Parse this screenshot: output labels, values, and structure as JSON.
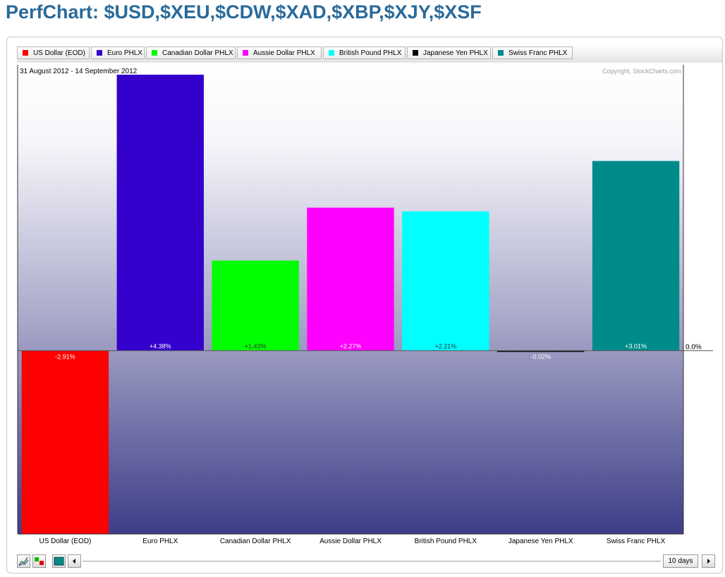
{
  "title": "PerfChart: $USD,$XEU,$CDW,$XAD,$XBP,$XJY,$XSF",
  "chart_data": {
    "type": "bar",
    "date_range": "31 August 2012 - 14 September 2012",
    "copyright": "Copyright, StockCharts.com",
    "zero_label": "0.0%",
    "categories": [
      "US Dollar (EOD)",
      "Euro PHLX",
      "Canadian Dollar PHLX",
      "Aussie Dollar PHLX",
      "British Pound PHLX",
      "Japanese Yen PHLX",
      "Swiss Franc PHLX"
    ],
    "values": [
      -2.91,
      4.38,
      1.43,
      2.27,
      2.21,
      -0.02,
      3.01
    ],
    "value_labels": [
      "-2.91%",
      "+4.38%",
      "+1.43%",
      "+2.27%",
      "+2.21%",
      "-0.02%",
      "+3.01%"
    ],
    "colors": [
      "#ff0000",
      "#3300cc",
      "#00ff00",
      "#ff00ff",
      "#00ffff",
      "#000000",
      "#008b8b"
    ],
    "ylim": [
      -2.91,
      4.38
    ],
    "grid": false,
    "legend_position": "top"
  },
  "legend": {
    "items": [
      {
        "label": "US Dollar (EOD)",
        "color": "#ff0000"
      },
      {
        "label": "Euro PHLX",
        "color": "#3300cc"
      },
      {
        "label": "Canadian Dollar PHLX",
        "color": "#00ff00"
      },
      {
        "label": "Aussie Dollar PHLX",
        "color": "#ff00ff"
      },
      {
        "label": "British Pound PHLX",
        "color": "#00ffff"
      },
      {
        "label": "Japanese Yen PHLX",
        "color": "#000000"
      },
      {
        "label": "Swiss Franc PHLX",
        "color": "#008b8b"
      }
    ]
  },
  "controls": {
    "period": "10 days",
    "icons": [
      "line-chart-icon",
      "bar-chart-icon",
      "histogram-icon",
      "scroll-left-icon",
      "scroll-right-icon"
    ]
  }
}
